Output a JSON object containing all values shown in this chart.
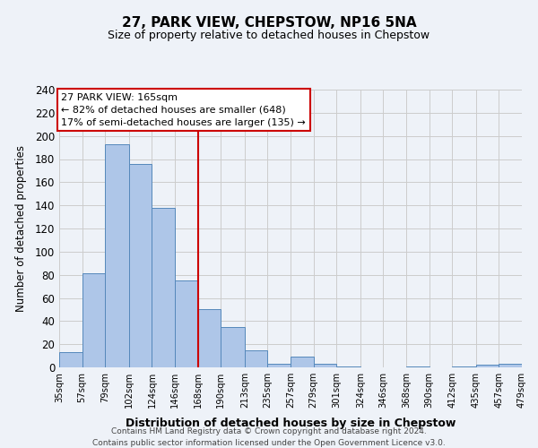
{
  "title": "27, PARK VIEW, CHEPSTOW, NP16 5NA",
  "subtitle": "Size of property relative to detached houses in Chepstow",
  "xlabel": "Distribution of detached houses by size in Chepstow",
  "ylabel": "Number of detached properties",
  "bin_labels": [
    "35sqm",
    "57sqm",
    "79sqm",
    "102sqm",
    "124sqm",
    "146sqm",
    "168sqm",
    "190sqm",
    "213sqm",
    "235sqm",
    "257sqm",
    "279sqm",
    "301sqm",
    "324sqm",
    "346sqm",
    "368sqm",
    "390sqm",
    "412sqm",
    "435sqm",
    "457sqm",
    "479sqm"
  ],
  "bar_values": [
    13,
    81,
    193,
    176,
    138,
    75,
    50,
    35,
    15,
    3,
    9,
    3,
    1,
    0,
    0,
    1,
    0,
    1,
    2,
    3
  ],
  "bar_edges": [
    35,
    57,
    79,
    102,
    124,
    146,
    168,
    190,
    213,
    235,
    257,
    279,
    301,
    324,
    346,
    368,
    390,
    412,
    435,
    457,
    479
  ],
  "ylim": [
    0,
    240
  ],
  "yticks": [
    0,
    20,
    40,
    60,
    80,
    100,
    120,
    140,
    160,
    180,
    200,
    220,
    240
  ],
  "property_label": "27 PARK VIEW: 165sqm",
  "annotation_line1": "← 82% of detached houses are smaller (648)",
  "annotation_line2": "17% of semi-detached houses are larger (135) →",
  "bar_color": "#aec6e8",
  "bar_edge_color": "#5588bb",
  "vline_color": "#cc0000",
  "vline_x": 168,
  "grid_color": "#cccccc",
  "bg_color": "#eef2f8",
  "footer_line1": "Contains HM Land Registry data © Crown copyright and database right 2024.",
  "footer_line2": "Contains public sector information licensed under the Open Government Licence v3.0."
}
